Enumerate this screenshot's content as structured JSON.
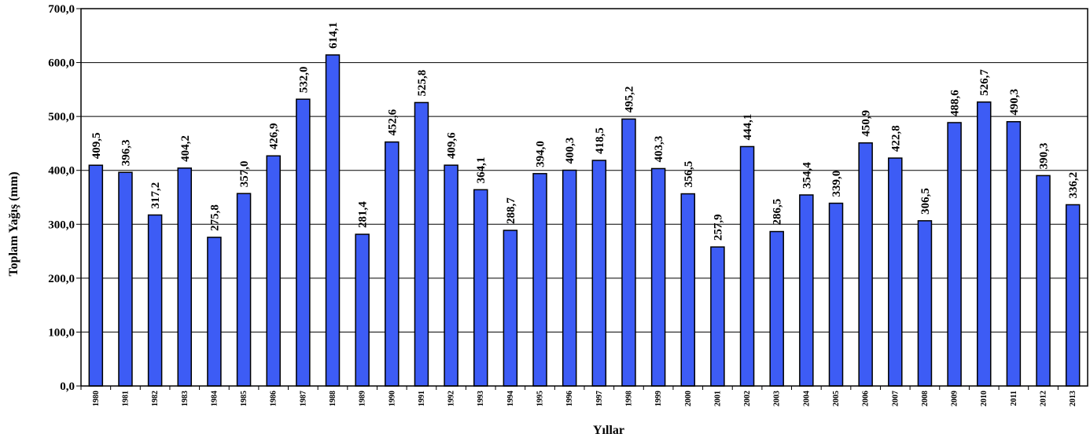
{
  "chart_data": {
    "type": "bar",
    "title": "",
    "xlabel": "Yıllar",
    "ylabel": "Toplam Yağış (mm)",
    "ylim": [
      0,
      700
    ],
    "yticks": [
      0,
      100,
      200,
      300,
      400,
      500,
      600,
      700
    ],
    "ytick_labels": [
      "0,0",
      "100,0",
      "200,0",
      "300,0",
      "400,0",
      "500,0",
      "600,0",
      "700,0"
    ],
    "grid": true,
    "legend": "none",
    "bar_color": "#3d5cf5",
    "categories": [
      "1980",
      "1981",
      "1982",
      "1983",
      "1984",
      "1985",
      "1986",
      "1987",
      "1988",
      "1989",
      "1990",
      "1991",
      "1992",
      "1993",
      "1994",
      "1995",
      "1996",
      "1997",
      "1998",
      "1999",
      "2000",
      "2001",
      "2002",
      "2003",
      "2004",
      "2005",
      "2006",
      "2007",
      "2008",
      "2009",
      "2010",
      "2011",
      "2012",
      "2013"
    ],
    "values": [
      409.5,
      396.3,
      317.2,
      404.2,
      275.8,
      357.0,
      426.9,
      532.0,
      614.1,
      281.4,
      452.6,
      525.8,
      409.6,
      364.1,
      288.7,
      394.0,
      400.3,
      418.5,
      495.2,
      403.3,
      356.5,
      257.9,
      444.1,
      286.5,
      354.4,
      339.0,
      450.9,
      422.8,
      306.5,
      488.6,
      526.7,
      490.3,
      390.3,
      336.2
    ],
    "data_labels": [
      "409,5",
      "396,3",
      "317,2",
      "404,2",
      "275,8",
      "357,0",
      "426,9",
      "532,0",
      "614,1",
      "281,4",
      "452,6",
      "525,8",
      "409,6",
      "364,1",
      "288,7",
      "394,0",
      "400,3",
      "418,5",
      "495,2",
      "403,3",
      "356,5",
      "257,9",
      "444,1",
      "286,5",
      "354,4",
      "339,0",
      "450,9",
      "422,8",
      "306,5",
      "488,6",
      "526,7",
      "490,3",
      "390,3",
      "336,2"
    ]
  }
}
